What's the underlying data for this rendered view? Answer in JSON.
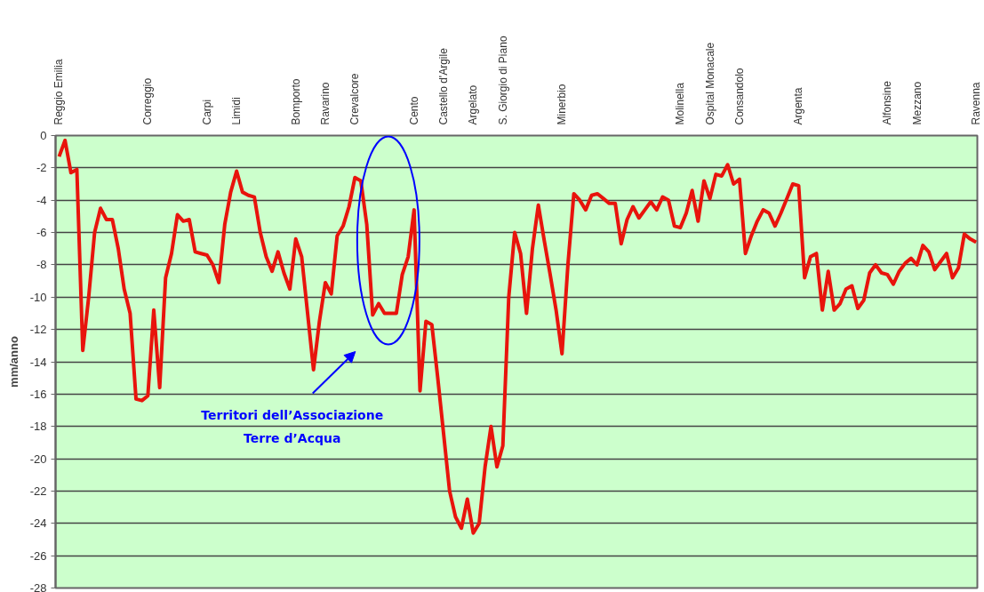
{
  "chart_data": {
    "type": "line",
    "ylabel": "mm/anno",
    "ylim": [
      -28,
      0
    ],
    "grid": "y",
    "yticks": [
      0,
      -2,
      -4,
      -6,
      -8,
      -10,
      -12,
      -14,
      -16,
      -18,
      -20,
      -22,
      -24,
      -26,
      -28
    ],
    "categories": [
      "Reggio Emilia",
      null,
      null,
      null,
      null,
      null,
      null,
      null,
      null,
      null,
      null,
      null,
      null,
      null,
      null,
      "Correggio",
      null,
      null,
      null,
      null,
      null,
      null,
      null,
      null,
      null,
      "Carpi",
      null,
      null,
      null,
      null,
      "Limidi",
      null,
      null,
      null,
      null,
      null,
      null,
      null,
      null,
      null,
      "Bomporto",
      null,
      null,
      null,
      null,
      "Ravarino",
      null,
      null,
      null,
      null,
      "Crevalcore",
      null,
      null,
      null,
      null,
      null,
      null,
      null,
      null,
      null,
      "Cento",
      null,
      null,
      null,
      null,
      "Castello d'Argile",
      null,
      null,
      null,
      null,
      "Argelato",
      null,
      null,
      null,
      null,
      "S. Giorgio di Piano",
      null,
      null,
      null,
      null,
      null,
      null,
      null,
      null,
      null,
      "Minerbio",
      null,
      null,
      null,
      null,
      null,
      null,
      null,
      null,
      null,
      null,
      null,
      null,
      null,
      null,
      null,
      null,
      null,
      null,
      null,
      "Molinella",
      null,
      null,
      null,
      null,
      "Ospital Monacale",
      null,
      null,
      null,
      null,
      "Consandolo",
      null,
      null,
      null,
      null,
      null,
      null,
      null,
      null,
      null,
      "Argenta",
      null,
      null,
      null,
      null,
      null,
      null,
      null,
      null,
      null,
      null,
      null,
      null,
      null,
      null,
      "Alfonsine",
      null,
      null,
      null,
      null,
      "Mezzano",
      null,
      null,
      null,
      null,
      null,
      null,
      null,
      null,
      null,
      "Ravenna"
    ],
    "annotations": [
      "Territori dell’Associazione\nTerre d’Acqua"
    ],
    "series": [
      {
        "color": "#e8140c",
        "values": [
          -1.3,
          -0.3,
          -2.3,
          -2.1,
          -13.3,
          -10,
          -6,
          -4.5,
          -5.2,
          -5.2,
          -7,
          -9.5,
          -11,
          -16.3,
          -16.4,
          -16.1,
          -10.8,
          -15.6,
          -8.8,
          -7.3,
          -4.9,
          -5.3,
          -5.2,
          -7.2,
          -7.3,
          -7.4,
          -8,
          -9.1,
          -5.5,
          -3.5,
          -2.2,
          -3.5,
          -3.7,
          -3.8,
          -6,
          -7.5,
          -8.4,
          -7.2,
          -8.5,
          -9.5,
          -6.4,
          -7.5,
          -11,
          -14.5,
          -11.5,
          -9.1,
          -9.8,
          -6.2,
          -5.6,
          -4.4,
          -2.6,
          -2.8,
          -5.5,
          -11.1,
          -10.4,
          -11,
          -11,
          -11,
          -8.6,
          -7.5,
          -4.6,
          -15.8,
          -11.5,
          -11.7,
          -15,
          -18.5,
          -22,
          -23.6,
          -24.3,
          -22.5,
          -24.6,
          -24,
          -20.5,
          -18,
          -20.5,
          -19.2,
          -10,
          -6,
          -7.3,
          -11,
          -7,
          -4.3,
          -6.5,
          -8.6,
          -10.8,
          -13.5,
          -8,
          -3.6,
          -4,
          -4.6,
          -3.7,
          -3.6,
          -3.9,
          -4.2,
          -4.2,
          -6.7,
          -5.2,
          -4.4,
          -5.1,
          -4.6,
          -4.1,
          -4.6,
          -3.8,
          -4,
          -5.6,
          -5.7,
          -4.8,
          -3.4,
          -5.3,
          -2.8,
          -3.9,
          -2.4,
          -2.5,
          -1.8,
          -3,
          -2.7,
          -7.3,
          -6.2,
          -5.3,
          -4.6,
          -4.8,
          -5.6,
          -4.8,
          -3.9,
          -3,
          -3.1,
          -8.8,
          -7.5,
          -7.3,
          -10.8,
          -8.4,
          -10.8,
          -10.4,
          -9.5,
          -9.3,
          -10.7,
          -10.2,
          -8.5,
          -8,
          -8.5,
          -8.6,
          -9.2,
          -8.4,
          -7.9,
          -7.6,
          -8,
          -6.8,
          -7.2,
          -8.3,
          -7.8,
          -7.3,
          -8.8,
          -8.2,
          -6.1,
          -6.4,
          -6.6
        ]
      }
    ]
  }
}
